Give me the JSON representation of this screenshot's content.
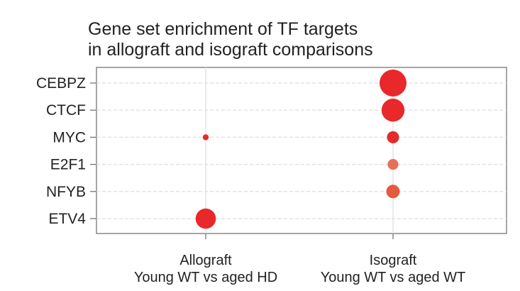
{
  "chart_data": {
    "type": "scatter",
    "title_lines": [
      "Gene set enrichment of TF targets",
      "in allograft and isograft comparisons"
    ],
    "y_categories": [
      "CEBPZ",
      "CTCF",
      "MYC",
      "E2F1",
      "NFYB",
      "ETV4"
    ],
    "x_categories": [
      {
        "lines": [
          "Allograft",
          "Young WT vs aged HD"
        ]
      },
      {
        "lines": [
          "Isograft",
          "Young WT vs aged WT"
        ]
      }
    ],
    "grid": true,
    "points": [
      {
        "y": "CEBPZ",
        "x": 1,
        "size": 1.0,
        "color": "#e8282b"
      },
      {
        "y": "CTCF",
        "x": 1,
        "size": 0.85,
        "color": "#e8282b"
      },
      {
        "y": "MYC",
        "x": 0,
        "size": 0.22,
        "color": "#e22b2b"
      },
      {
        "y": "MYC",
        "x": 1,
        "size": 0.45,
        "color": "#e42a2a"
      },
      {
        "y": "E2F1",
        "x": 1,
        "size": 0.4,
        "color": "#e8705a"
      },
      {
        "y": "NFYB",
        "x": 1,
        "size": 0.5,
        "color": "#e65a3f"
      },
      {
        "y": "ETV4",
        "x": 0,
        "size": 0.75,
        "color": "#e8282b"
      }
    ]
  }
}
